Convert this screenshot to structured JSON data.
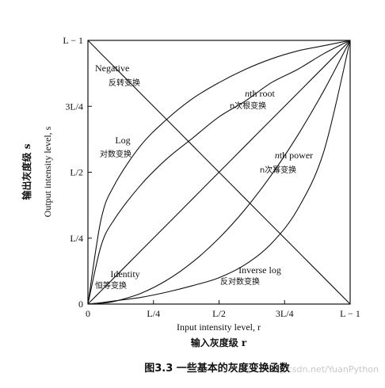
{
  "chart_data": {
    "type": "line",
    "title": "",
    "xlabel": "Input intensity level, r",
    "xlabel_cn": "输入灰度级 r",
    "ylabel": "Output intensity level, s",
    "ylabel_cn": "输出灰度级 s",
    "xlim": [
      0,
      1
    ],
    "ylim": [
      0,
      1
    ],
    "grid": false,
    "x_ticks": [
      {
        "value": 0,
        "label": "0"
      },
      {
        "value": 0.25,
        "label": "L/4"
      },
      {
        "value": 0.5,
        "label": "L/2"
      },
      {
        "value": 0.75,
        "label": "3L/4"
      },
      {
        "value": 1,
        "label": "L − 1"
      }
    ],
    "y_ticks": [
      {
        "value": 0,
        "label": "0"
      },
      {
        "value": 0.25,
        "label": "L/4"
      },
      {
        "value": 0.5,
        "label": "L/2"
      },
      {
        "value": 0.75,
        "label": "3L/4"
      },
      {
        "value": 1,
        "label": "L − 1"
      }
    ],
    "x": [
      0,
      0.05,
      0.1,
      0.2,
      0.3,
      0.4,
      0.5,
      0.6,
      0.7,
      0.8,
      0.9,
      1
    ],
    "series": [
      {
        "key": "negative",
        "name": "Negative",
        "name_cn": "反转变换",
        "values": [
          1,
          0.95,
          0.9,
          0.8,
          0.7,
          0.6,
          0.5,
          0.4,
          0.3,
          0.2,
          0.1,
          0
        ]
      },
      {
        "key": "log",
        "name": "Log",
        "name_cn": "对数变换",
        "values": [
          0,
          0.32,
          0.45,
          0.6,
          0.7,
          0.78,
          0.84,
          0.89,
          0.93,
          0.96,
          0.98,
          1
        ]
      },
      {
        "key": "nth_root",
        "name": "nth root",
        "name_cn": "n次根变换",
        "values": [
          0,
          0.22,
          0.32,
          0.45,
          0.55,
          0.63,
          0.71,
          0.77,
          0.84,
          0.89,
          0.95,
          1
        ]
      },
      {
        "key": "identity",
        "name": "Identity",
        "name_cn": "恒等变换",
        "values": [
          0,
          0.05,
          0.1,
          0.2,
          0.3,
          0.4,
          0.5,
          0.6,
          0.7,
          0.8,
          0.9,
          1
        ]
      },
      {
        "key": "nth_power",
        "name": "nth power",
        "name_cn": "n次幂变换",
        "values": [
          0,
          0.003,
          0.01,
          0.04,
          0.09,
          0.16,
          0.25,
          0.36,
          0.49,
          0.64,
          0.81,
          1
        ]
      },
      {
        "key": "inverse_log",
        "name": "Inverse log",
        "name_cn": "反对数变换",
        "values": [
          0,
          0.005,
          0.012,
          0.025,
          0.045,
          0.07,
          0.1,
          0.15,
          0.23,
          0.36,
          0.58,
          1
        ]
      }
    ]
  },
  "caption": "图3.3  一些基本的灰度变换函数",
  "watermark": "https://blog.csdn.net/YuanPython"
}
